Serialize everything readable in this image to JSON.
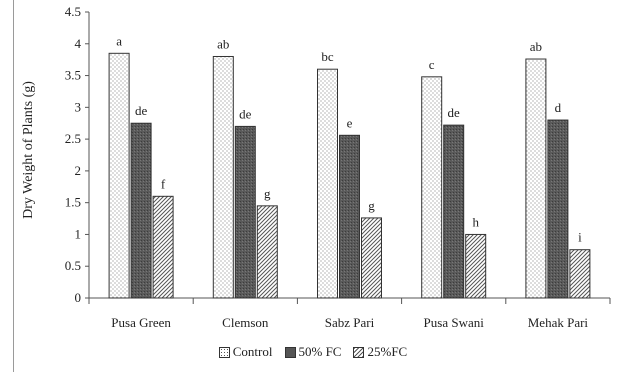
{
  "chart_data": {
    "type": "bar",
    "ylabel": "Dry Weight of Plants (g)",
    "ylim": [
      0,
      4.5
    ],
    "yticks": [
      "0",
      "0.5",
      "1",
      "1.5",
      "2",
      "2.5",
      "3",
      "3.5",
      "4",
      "4.5"
    ],
    "categories": [
      "Pusa Green",
      "Clemson",
      "Sabz Pari",
      "Pusa Swani",
      "Mehak Pari"
    ],
    "series": [
      {
        "name": "Control",
        "values": [
          3.85,
          3.8,
          3.6,
          3.48,
          3.76
        ],
        "labels": [
          "a",
          "ab",
          "bc",
          "c",
          "ab"
        ],
        "pattern": "dots"
      },
      {
        "name": "50% FC",
        "values": [
          2.75,
          2.7,
          2.56,
          2.72,
          2.8
        ],
        "labels": [
          "de",
          "de",
          "e",
          "de",
          "d"
        ],
        "pattern": "dark"
      },
      {
        "name": "25%FC",
        "values": [
          1.6,
          1.45,
          1.26,
          1.0,
          0.76
        ],
        "labels": [
          "f",
          "g",
          "g",
          "h",
          "i"
        ],
        "pattern": "hatch"
      }
    ],
    "legend_position": "bottom",
    "grid": false
  }
}
